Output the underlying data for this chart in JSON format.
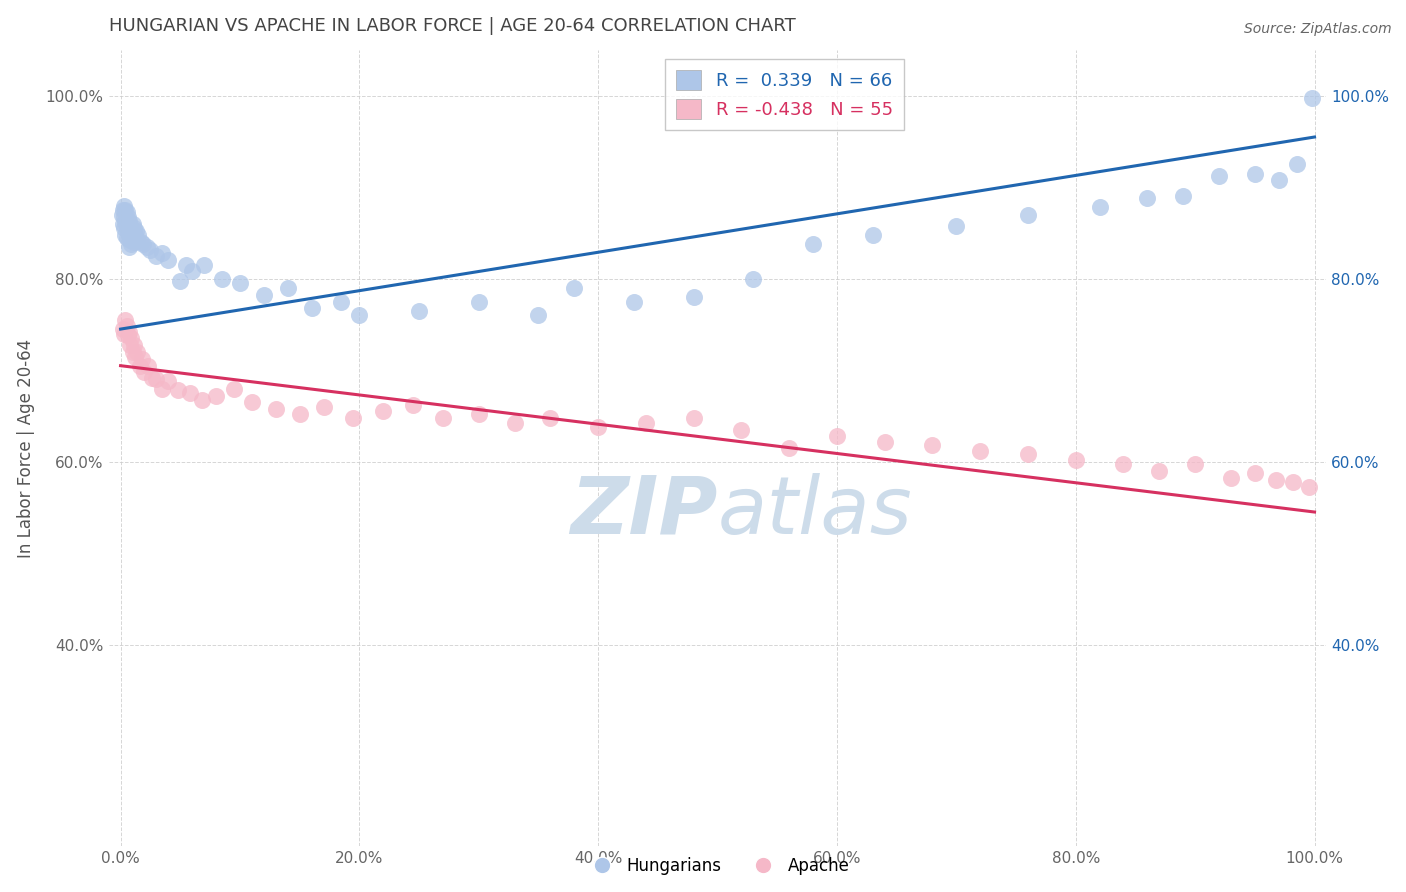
{
  "title": "HUNGARIAN VS APACHE IN LABOR FORCE | AGE 20-64 CORRELATION CHART",
  "source_text": "Source: ZipAtlas.com",
  "ylabel": "In Labor Force | Age 20-64",
  "xlabel": "",
  "xlim": [
    -0.01,
    1.01
  ],
  "ylim": [
    0.18,
    1.05
  ],
  "xticks": [
    0.0,
    0.2,
    0.4,
    0.6,
    0.8,
    1.0
  ],
  "yticks": [
    0.4,
    0.6,
    0.8,
    1.0
  ],
  "right_yticks": [
    0.4,
    0.6,
    0.8,
    1.0
  ],
  "hungarian_R": 0.339,
  "hungarian_N": 66,
  "apache_R": -0.438,
  "apache_N": 55,
  "hungarian_color": "#aec6e8",
  "apache_color": "#f5b8c8",
  "hungarian_line_color": "#2066b0",
  "apache_line_color": "#d63060",
  "watermark_color": "#cddcea",
  "background_color": "#ffffff",
  "grid_color": "#cccccc",
  "title_color": "#333333",
  "hungarian_trend_x": [
    0.0,
    1.0
  ],
  "hungarian_trend_y": [
    0.745,
    0.955
  ],
  "apache_trend_x": [
    0.0,
    1.0
  ],
  "apache_trend_y": [
    0.705,
    0.545
  ],
  "hungarian_scatter_x": [
    0.001,
    0.002,
    0.002,
    0.003,
    0.003,
    0.003,
    0.004,
    0.004,
    0.004,
    0.005,
    0.005,
    0.005,
    0.006,
    0.006,
    0.007,
    0.007,
    0.007,
    0.008,
    0.008,
    0.009,
    0.009,
    0.01,
    0.01,
    0.011,
    0.011,
    0.012,
    0.013,
    0.014,
    0.015,
    0.017,
    0.019,
    0.022,
    0.025,
    0.03,
    0.035,
    0.04,
    0.05,
    0.055,
    0.06,
    0.07,
    0.085,
    0.1,
    0.12,
    0.14,
    0.16,
    0.185,
    0.2,
    0.25,
    0.3,
    0.35,
    0.38,
    0.43,
    0.48,
    0.53,
    0.58,
    0.63,
    0.7,
    0.76,
    0.82,
    0.86,
    0.89,
    0.92,
    0.95,
    0.97,
    0.985,
    0.998
  ],
  "hungarian_scatter_y": [
    0.87,
    0.875,
    0.86,
    0.88,
    0.868,
    0.855,
    0.875,
    0.862,
    0.848,
    0.873,
    0.858,
    0.845,
    0.868,
    0.852,
    0.863,
    0.848,
    0.835,
    0.858,
    0.842,
    0.852,
    0.838,
    0.86,
    0.845,
    0.855,
    0.84,
    0.848,
    0.852,
    0.842,
    0.848,
    0.84,
    0.838,
    0.835,
    0.832,
    0.825,
    0.828,
    0.82,
    0.798,
    0.815,
    0.808,
    0.815,
    0.8,
    0.795,
    0.782,
    0.79,
    0.768,
    0.775,
    0.76,
    0.765,
    0.775,
    0.76,
    0.79,
    0.775,
    0.78,
    0.8,
    0.838,
    0.848,
    0.858,
    0.87,
    0.878,
    0.888,
    0.89,
    0.912,
    0.915,
    0.908,
    0.925,
    0.998
  ],
  "apache_scatter_x": [
    0.002,
    0.003,
    0.004,
    0.005,
    0.006,
    0.007,
    0.008,
    0.009,
    0.01,
    0.011,
    0.012,
    0.014,
    0.016,
    0.018,
    0.02,
    0.023,
    0.026,
    0.03,
    0.035,
    0.04,
    0.048,
    0.058,
    0.068,
    0.08,
    0.095,
    0.11,
    0.13,
    0.15,
    0.17,
    0.195,
    0.22,
    0.245,
    0.27,
    0.3,
    0.33,
    0.36,
    0.4,
    0.44,
    0.48,
    0.52,
    0.56,
    0.6,
    0.64,
    0.68,
    0.72,
    0.76,
    0.8,
    0.84,
    0.87,
    0.9,
    0.93,
    0.95,
    0.968,
    0.982,
    0.995
  ],
  "apache_scatter_y": [
    0.745,
    0.74,
    0.755,
    0.748,
    0.738,
    0.742,
    0.728,
    0.735,
    0.72,
    0.728,
    0.715,
    0.72,
    0.705,
    0.712,
    0.698,
    0.705,
    0.692,
    0.69,
    0.68,
    0.688,
    0.678,
    0.675,
    0.668,
    0.672,
    0.68,
    0.665,
    0.658,
    0.652,
    0.66,
    0.648,
    0.655,
    0.662,
    0.648,
    0.652,
    0.642,
    0.648,
    0.638,
    0.642,
    0.648,
    0.635,
    0.615,
    0.628,
    0.622,
    0.618,
    0.612,
    0.608,
    0.602,
    0.598,
    0.59,
    0.598,
    0.582,
    0.588,
    0.58,
    0.578,
    0.572
  ]
}
